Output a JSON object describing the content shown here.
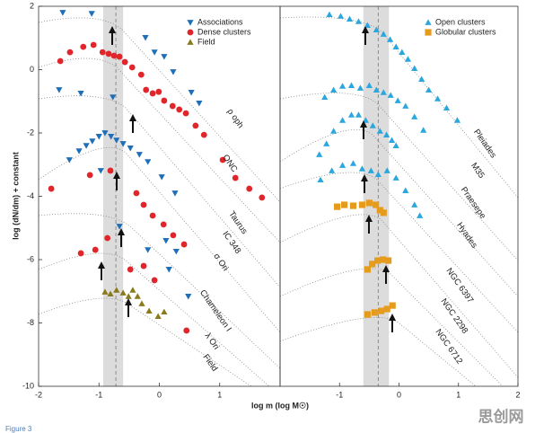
{
  "chart_data": [
    {
      "type": "scatter",
      "xlim": [
        -2,
        2
      ],
      "ylim": [
        -10,
        2
      ],
      "xticks": [
        -2,
        -1,
        0,
        1
      ],
      "yticks": [
        -10,
        -8,
        -6,
        -4,
        -2,
        0,
        2
      ],
      "ylabel": "log (dN/dm) + constant",
      "xlabel": "log m (log M☉)",
      "legend": "upper right",
      "shaded_range": [
        -0.93,
        -0.6
      ],
      "reference_x": -0.72,
      "curve_labels": [
        "ρ oph",
        "ONC",
        "Taurus",
        "IC 348",
        "σ Ori",
        "Chameleon I",
        "λ Ori",
        "Field"
      ],
      "series": [
        {
          "name": "Associations",
          "color": "#1f6fb8",
          "marker": "triangle-down",
          "x": [
            -1.6,
            -1.12,
            -0.23,
            -0.08,
            0.08,
            0.23,
            0.53,
            0.66,
            -1.66,
            -1.3,
            -0.77,
            -1.49,
            -1.33,
            -1.21,
            -1.11,
            -1.0,
            -0.9,
            -0.8,
            -0.71,
            -0.6,
            -0.48,
            -0.33,
            -0.19,
            0.04,
            0.26,
            -0.97,
            -0.66,
            0.11,
            0.28,
            -0.19,
            0.16,
            0.48
          ],
          "y": [
            1.8,
            1.77,
            1.01,
            0.55,
            0.41,
            -0.07,
            -0.72,
            -1.06,
            -0.64,
            -0.75,
            -0.87,
            -2.85,
            -2.57,
            -2.4,
            -2.26,
            -2.11,
            -2.0,
            -2.11,
            -2.23,
            -2.34,
            -2.48,
            -2.68,
            -2.91,
            -3.39,
            -3.9,
            -3.19,
            -4.95,
            -5.4,
            -5.74,
            -5.69,
            -6.31,
            -7.16
          ]
        },
        {
          "name": "Dense clusters",
          "color": "#e0262b",
          "marker": "circle",
          "x": [
            -1.64,
            -1.48,
            -1.26,
            -1.09,
            -0.94,
            -0.84,
            -0.75,
            -0.66,
            -0.57,
            -0.45,
            -0.3,
            -0.22,
            -0.11,
            -0.01,
            0.08,
            0.22,
            0.33,
            0.44,
            0.6,
            0.74,
            1.05,
            1.26,
            1.49,
            1.7,
            -1.79,
            -1.15,
            -0.81,
            -0.38,
            -0.26,
            -0.11,
            0.07,
            0.23,
            0.41,
            -1.3,
            -1.06,
            -0.86,
            -0.48,
            -0.26,
            -0.08,
            0.45
          ],
          "y": [
            0.27,
            0.55,
            0.72,
            0.78,
            0.55,
            0.5,
            0.44,
            0.41,
            0.24,
            0.07,
            -0.16,
            -0.64,
            -0.75,
            -0.7,
            -0.98,
            -1.15,
            -1.26,
            -1.38,
            -1.77,
            -2.06,
            -2.85,
            -3.42,
            -3.76,
            -4.04,
            -3.76,
            -3.33,
            -3.19,
            -3.9,
            -4.27,
            -4.61,
            -4.89,
            -5.23,
            -5.52,
            -5.8,
            -5.69,
            -5.32,
            -6.31,
            -6.2,
            -6.65,
            -8.24
          ]
        },
        {
          "name": "Field",
          "color": "#8a7a1c",
          "marker": "triangle-up",
          "x": [
            -0.9,
            -0.81,
            -0.71,
            -0.6,
            -0.51,
            -0.44,
            -0.36,
            -0.29,
            -0.17,
            -0.02,
            0.08
          ],
          "y": [
            -7.02,
            -7.08,
            -6.96,
            -7.05,
            -7.16,
            -6.96,
            -7.16,
            -7.39,
            -7.62,
            -7.79,
            -7.65
          ]
        }
      ]
    },
    {
      "type": "scatter",
      "xlim": [
        -2,
        2
      ],
      "ylim": [
        -10,
        2
      ],
      "xticks": [
        -1,
        0,
        1,
        2
      ],
      "legend": "upper right",
      "shaded_range": [
        -0.6,
        -0.17
      ],
      "reference_x": -0.35,
      "curve_labels": [
        "Pleiades",
        "M35",
        "Praesepe",
        "Hyades",
        "NGC 6397",
        "NGC 2298",
        "NGC 6712"
      ],
      "series": [
        {
          "name": "Open clusters",
          "color": "#2aa7de",
          "marker": "triangle-up",
          "x": [
            -1.17,
            -0.98,
            -0.83,
            -0.68,
            -0.53,
            -0.38,
            -0.26,
            -0.15,
            -0.05,
            0.05,
            0.15,
            0.26,
            0.38,
            0.5,
            0.65,
            0.8,
            0.98,
            -1.25,
            -1.1,
            -0.95,
            -0.8,
            -0.65,
            -0.5,
            -0.38,
            -0.26,
            -0.14,
            -0.02,
            0.11,
            0.26,
            0.41,
            -1.34,
            -1.22,
            -1.1,
            -0.95,
            -0.8,
            -0.68,
            -0.56,
            -0.44,
            -0.32,
            -0.21,
            -0.12,
            -0.05,
            -1.32,
            -1.13,
            -0.95,
            -0.77,
            -0.62,
            -0.47,
            -0.35,
            -0.2,
            -0.05,
            0.11,
            0.26,
            0.35
          ],
          "y": [
            1.74,
            1.69,
            1.6,
            1.52,
            1.4,
            1.26,
            1.12,
            0.95,
            0.72,
            0.55,
            0.33,
            0.04,
            -0.3,
            -0.64,
            -0.92,
            -1.21,
            -1.6,
            -0.87,
            -0.64,
            -0.52,
            -0.5,
            -0.58,
            -0.5,
            -0.64,
            -0.72,
            -0.81,
            -0.98,
            -1.15,
            -1.49,
            -1.91,
            -2.68,
            -2.34,
            -1.94,
            -1.6,
            -1.43,
            -1.43,
            -1.6,
            -1.77,
            -1.94,
            -2.06,
            -2.23,
            -2.4,
            -3.48,
            -3.19,
            -3.02,
            -2.96,
            -3.13,
            -3.19,
            -3.31,
            -3.19,
            -3.42,
            -3.82,
            -4.27,
            -4.61
          ]
        },
        {
          "name": "Globular clusters",
          "color": "#e59b1c",
          "marker": "square",
          "x": [
            -1.04,
            -0.92,
            -0.77,
            -0.62,
            -0.5,
            -0.39,
            -0.32,
            -0.26,
            -0.53,
            -0.45,
            -0.36,
            -0.27,
            -0.18,
            -0.53,
            -0.41,
            -0.3,
            -0.2,
            -0.11
          ],
          "y": [
            -4.33,
            -4.27,
            -4.3,
            -4.27,
            -4.21,
            -4.27,
            -4.44,
            -4.52,
            -6.31,
            -6.14,
            -6.03,
            -6.0,
            -6.03,
            -7.73,
            -7.67,
            -7.62,
            -7.56,
            -7.45
          ]
        }
      ]
    }
  ],
  "figure_label": "Figure 3",
  "watermark": "思创网"
}
